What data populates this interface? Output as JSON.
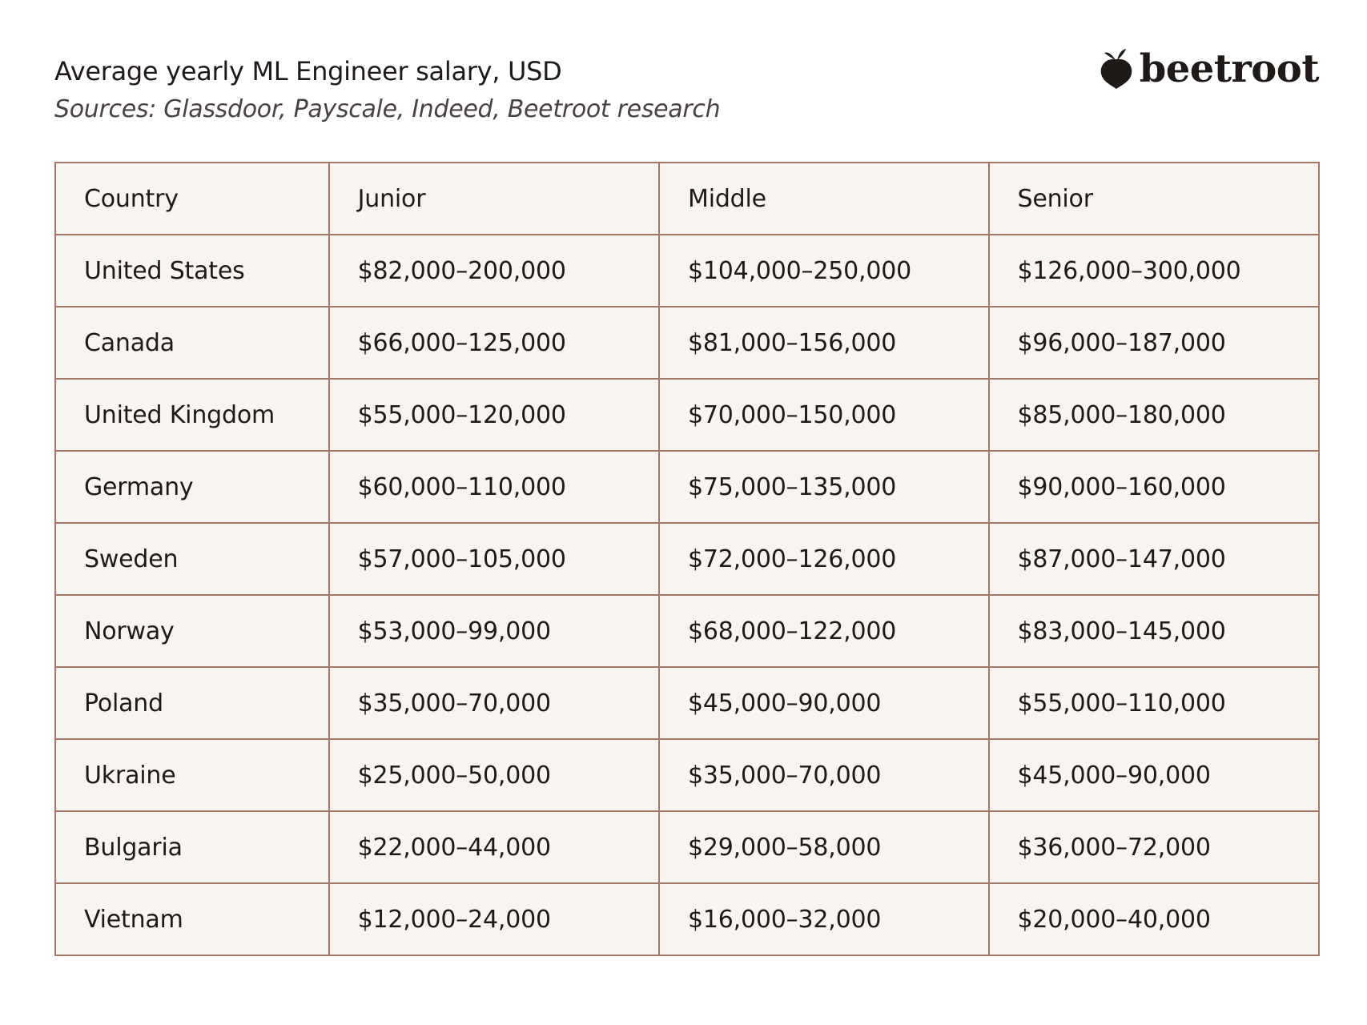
{
  "header": {
    "title": "Average yearly ML Engineer salary, USD",
    "subtitle": "Sources: Glassdoor, Payscale, Indeed, Beetroot research",
    "logo": "beetroot"
  },
  "table": {
    "columns": [
      "Country",
      "Junior",
      "Middle",
      "Senior"
    ],
    "rows": [
      [
        "United States",
        "$82,000–200,000",
        "$104,000–250,000",
        "$126,000–300,000"
      ],
      [
        "Canada",
        "$66,000–125,000",
        "$81,000–156,000",
        "$96,000–187,000"
      ],
      [
        "United Kingdom",
        "$55,000–120,000",
        "$70,000–150,000",
        "$85,000–180,000"
      ],
      [
        "Germany",
        "$60,000–110,000",
        "$75,000–135,000",
        "$90,000–160,000"
      ],
      [
        "Sweden",
        "$57,000–105,000",
        "$72,000–126,000",
        "$87,000–147,000"
      ],
      [
        "Norway",
        "$53,000–99,000",
        "$68,000–122,000",
        "$83,000–145,000"
      ],
      [
        "Poland",
        "$35,000–70,000",
        "$45,000–90,000",
        "$55,000–110,000"
      ],
      [
        "Ukraine",
        "$25,000–50,000",
        "$35,000–70,000",
        "$45,000–90,000"
      ],
      [
        "Bulgaria",
        "$22,000–44,000",
        "$29,000–58,000",
        "$36,000–72,000"
      ],
      [
        "Vietnam",
        "$12,000–24,000",
        "$16,000–32,000",
        "$20,000–40,000"
      ]
    ]
  }
}
